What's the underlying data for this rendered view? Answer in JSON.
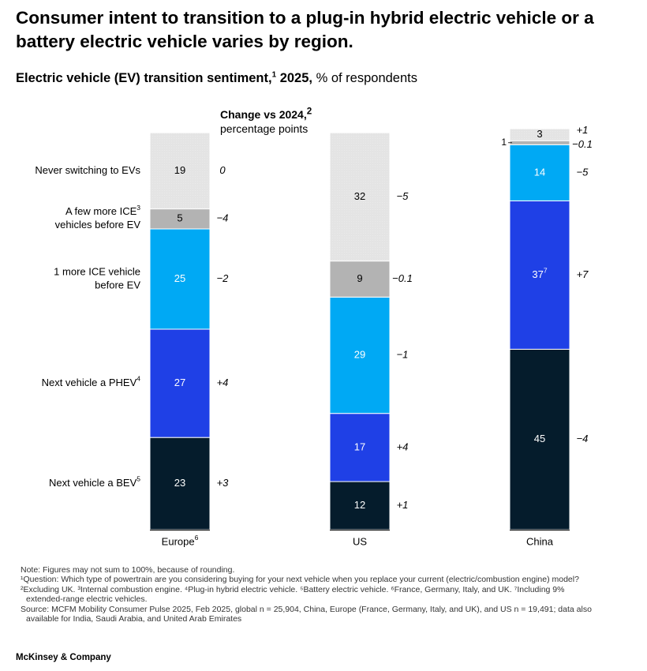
{
  "title": "Consumer intent to transition to a plug-in hybrid electric vehicle or a battery electric vehicle varies by region.",
  "subtitle": {
    "bold": "Electric vehicle (EV) transition sentiment,",
    "sup": "1",
    "year": " 2025,",
    "rest": " % of respondents"
  },
  "change_header": {
    "line1": "Change vs 2024,",
    "sup": "2",
    "line2": "percentage points"
  },
  "chart_data": {
    "type": "bar",
    "stacked": true,
    "categories": [
      "Europe",
      "US",
      "China"
    ],
    "category_labels": [
      {
        "text": "Europe",
        "sup": "6"
      },
      {
        "text": "US",
        "sup": ""
      },
      {
        "text": "China",
        "sup": ""
      }
    ],
    "series": [
      {
        "label_lines": [
          "Next vehicle a BEV"
        ],
        "sup": "5",
        "values": [
          23,
          12,
          45
        ],
        "value_labels": [
          "23",
          "12",
          "45"
        ],
        "changes": [
          "+3",
          "+1",
          "−4"
        ],
        "color": "#051c2c"
      },
      {
        "label_lines": [
          "Next vehicle a PHEV"
        ],
        "sup": "4",
        "values": [
          27,
          17,
          37
        ],
        "value_labels": [
          "27",
          "17",
          "37"
        ],
        "value_sups": [
          "",
          "",
          "7"
        ],
        "changes": [
          "+4",
          "+4",
          "+7"
        ],
        "color": "#1f40e6"
      },
      {
        "label_lines": [
          "1 more ICE vehicle",
          "before EV"
        ],
        "sup": "",
        "values": [
          25,
          29,
          14
        ],
        "value_labels": [
          "25",
          "29",
          "14"
        ],
        "changes": [
          "−2",
          "−1",
          "−5"
        ],
        "color": "#00a9f4"
      },
      {
        "label_lines": [
          "A few more ICE",
          "vehicles before EV"
        ],
        "sup": "3",
        "values": [
          5,
          9,
          1
        ],
        "value_labels": [
          "5",
          "9",
          "1"
        ],
        "changes": [
          "−4",
          "−0.1",
          "−0.1"
        ],
        "color": "#b3b3b3"
      },
      {
        "label_lines": [
          "Never switching to EVs"
        ],
        "sup": "",
        "values": [
          19,
          32,
          3
        ],
        "value_labels": [
          "19",
          "32",
          "3"
        ],
        "changes": [
          "0",
          "−5",
          "+1"
        ],
        "color": "#e6e6e6"
      }
    ],
    "ylim": [
      0,
      100
    ],
    "grid": false,
    "legend": "left"
  },
  "notes": [
    "Note: Figures may not sum to 100%, because of rounding.",
    "¹Question: Which type of powertrain are you considering buying for your next vehicle when you replace your current (electric/combustion engine) model?",
    "²Excluding UK. ³Internal combustion engine. ⁴Plug-in hybrid electric vehicle. ⁵Battery electric vehicle. ⁶France, Germany, Italy, and UK. ⁷Including 9%",
    "extended-range electric vehicles.",
    "Source: MCFM Mobility Consumer Pulse 2025, Feb 2025, global n = 25,904, China, Europe (France, Germany, Italy, and UK), and US n = 19,491; data also",
    "available for India, Saudi Arabia, and United Arab Emirates"
  ],
  "brand": "McKinsey & Company"
}
